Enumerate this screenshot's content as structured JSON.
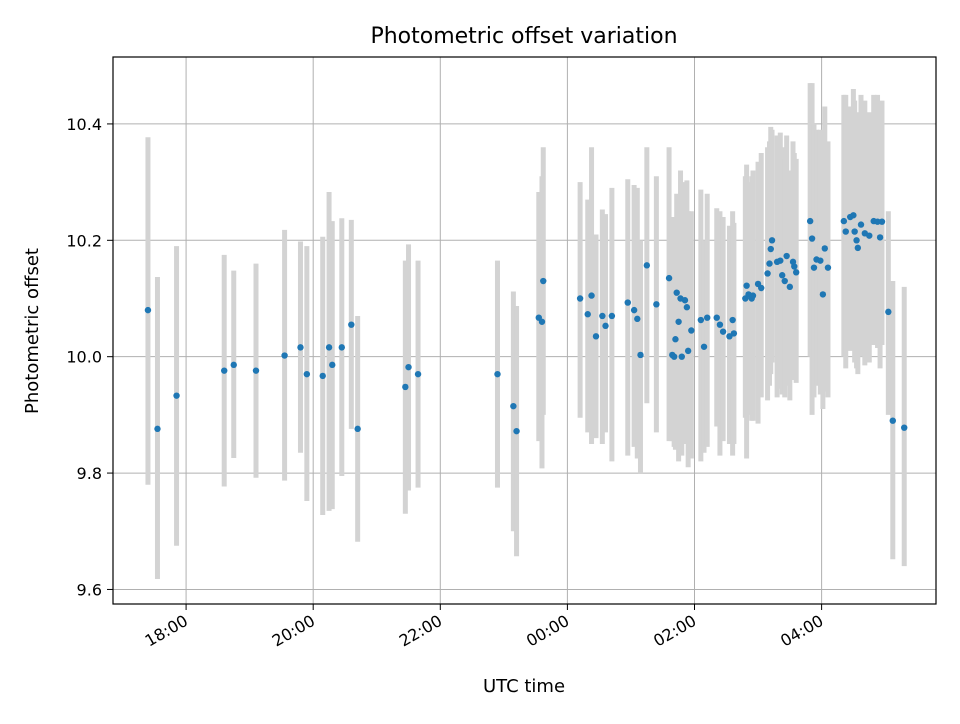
{
  "chart_data": {
    "type": "scatter",
    "title": "Photometric offset variation",
    "xlabel": "UTC time",
    "ylabel": "Photometric offset",
    "x_unit": "hours since 00:00 UTC",
    "xlim": [
      -7.15,
      5.8
    ],
    "ylim": [
      9.575,
      10.515
    ],
    "grid": true,
    "x_ticks": [
      {
        "value": -6,
        "label": "18:00"
      },
      {
        "value": -4,
        "label": "20:00"
      },
      {
        "value": -2,
        "label": "22:00"
      },
      {
        "value": 0,
        "label": "00:00"
      },
      {
        "value": 2,
        "label": "02:00"
      },
      {
        "value": 4,
        "label": "04:00"
      }
    ],
    "y_ticks": [
      {
        "value": 9.6,
        "label": "9.6"
      },
      {
        "value": 9.8,
        "label": "9.8"
      },
      {
        "value": 10.0,
        "label": "10.0"
      },
      {
        "value": 10.2,
        "label": "10.2"
      },
      {
        "value": 10.4,
        "label": "10.4"
      }
    ],
    "marker_color": "#1f77b4",
    "errorbar_color": "#d3d3d3",
    "series": [
      {
        "name": "offset",
        "points": [
          [
            -6.6,
            10.08,
            9.78,
            10.377
          ],
          [
            -6.45,
            9.876,
            9.618,
            10.137
          ],
          [
            -6.15,
            9.933,
            9.675,
            10.19
          ],
          [
            -5.4,
            9.976,
            9.777,
            10.175
          ],
          [
            -5.25,
            9.986,
            9.826,
            10.148
          ],
          [
            -4.9,
            9.976,
            9.792,
            10.16
          ],
          [
            -4.45,
            10.002,
            9.787,
            10.218
          ],
          [
            -4.2,
            10.016,
            9.835,
            10.198
          ],
          [
            -4.1,
            9.97,
            9.752,
            10.19
          ],
          [
            -3.85,
            9.967,
            9.728,
            10.206
          ],
          [
            -3.75,
            10.016,
            9.735,
            10.283
          ],
          [
            -3.7,
            9.986,
            9.738,
            10.233
          ],
          [
            -3.55,
            10.016,
            9.795,
            10.238
          ],
          [
            -3.4,
            10.055,
            9.876,
            10.235
          ],
          [
            -3.3,
            9.876,
            9.682,
            10.07
          ],
          [
            -2.55,
            9.948,
            9.73,
            10.165
          ],
          [
            -2.5,
            9.982,
            9.77,
            10.193
          ],
          [
            -2.35,
            9.97,
            9.775,
            10.165
          ],
          [
            -1.1,
            9.97,
            9.775,
            10.165
          ],
          [
            -0.85,
            9.915,
            9.7,
            10.112
          ],
          [
            -0.8,
            9.872,
            9.657,
            10.087
          ],
          [
            -0.45,
            10.067,
            9.855,
            10.283
          ],
          [
            -0.4,
            10.06,
            9.808,
            10.31
          ],
          [
            -0.38,
            10.13,
            9.9,
            10.36
          ],
          [
            0.2,
            10.1,
            9.895,
            10.3
          ],
          [
            0.32,
            10.073,
            9.87,
            10.27
          ],
          [
            0.38,
            10.105,
            9.85,
            10.36
          ],
          [
            0.45,
            10.035,
            9.86,
            10.21
          ],
          [
            0.55,
            10.07,
            9.85,
            10.253
          ],
          [
            0.6,
            10.053,
            9.87,
            10.245
          ],
          [
            0.7,
            10.07,
            9.82,
            10.29
          ],
          [
            0.95,
            10.093,
            9.83,
            10.305
          ],
          [
            1.05,
            10.08,
            9.845,
            10.295
          ],
          [
            1.1,
            10.065,
            9.825,
            10.29
          ],
          [
            1.15,
            10.003,
            9.8,
            10.2
          ],
          [
            1.25,
            10.157,
            9.92,
            10.36
          ],
          [
            1.4,
            10.09,
            9.87,
            10.31
          ],
          [
            1.6,
            10.135,
            9.855,
            10.36
          ],
          [
            1.65,
            10.003,
            9.855,
            10.24
          ],
          [
            1.68,
            10.0,
            9.845,
            10.19
          ],
          [
            1.7,
            10.03,
            9.84,
            10.24
          ],
          [
            1.72,
            10.11,
            9.885,
            10.28
          ],
          [
            1.75,
            10.06,
            9.82,
            10.27
          ],
          [
            1.78,
            10.1,
            9.87,
            10.32
          ],
          [
            1.8,
            10.0,
            9.83,
            10.18
          ],
          [
            1.85,
            10.097,
            9.85,
            10.3
          ],
          [
            1.88,
            10.085,
            9.875,
            10.303
          ],
          [
            1.9,
            10.01,
            9.81,
            10.25
          ],
          [
            1.95,
            10.045,
            9.825,
            10.25
          ],
          [
            2.1,
            10.063,
            9.82,
            10.287
          ],
          [
            2.15,
            10.017,
            9.835,
            10.2
          ],
          [
            2.2,
            10.067,
            9.845,
            10.28
          ],
          [
            2.35,
            10.067,
            9.88,
            10.255
          ],
          [
            2.4,
            10.055,
            9.83,
            10.25
          ],
          [
            2.45,
            10.043,
            9.855,
            10.24
          ],
          [
            2.55,
            10.035,
            9.85,
            10.225
          ],
          [
            2.6,
            10.063,
            9.83,
            10.25
          ],
          [
            2.62,
            10.04,
            9.85,
            10.23
          ],
          [
            2.8,
            10.1,
            9.895,
            10.31
          ],
          [
            2.82,
            10.122,
            9.825,
            10.33
          ],
          [
            2.85,
            10.107,
            9.9,
            10.3
          ],
          [
            2.9,
            10.1,
            9.89,
            10.31
          ],
          [
            2.92,
            10.105,
            9.89,
            10.32
          ],
          [
            3.0,
            10.125,
            9.885,
            10.335
          ],
          [
            3.05,
            10.118,
            9.93,
            10.35
          ],
          [
            3.15,
            10.143,
            9.925,
            10.36
          ],
          [
            3.18,
            10.16,
            9.95,
            10.37
          ],
          [
            3.2,
            10.185,
            9.97,
            10.395
          ],
          [
            3.22,
            10.2,
            9.99,
            10.39
          ],
          [
            3.3,
            10.163,
            9.93,
            10.38
          ],
          [
            3.35,
            10.165,
            9.945,
            10.385
          ],
          [
            3.38,
            10.14,
            9.935,
            10.36
          ],
          [
            3.42,
            10.13,
            9.93,
            10.34
          ],
          [
            3.45,
            10.173,
            9.95,
            10.38
          ],
          [
            3.5,
            10.12,
            9.925,
            10.32
          ],
          [
            3.55,
            10.163,
            9.96,
            10.37
          ],
          [
            3.57,
            10.155,
            9.96,
            10.35
          ],
          [
            3.6,
            10.145,
            9.955,
            10.34
          ],
          [
            3.82,
            10.233,
            10.0,
            10.47
          ],
          [
            3.85,
            10.203,
            9.9,
            10.47
          ],
          [
            3.88,
            10.153,
            9.93,
            10.4
          ],
          [
            3.92,
            10.167,
            9.95,
            10.39
          ],
          [
            3.98,
            10.165,
            9.935,
            10.39
          ],
          [
            4.02,
            10.107,
            9.91,
            10.3
          ],
          [
            4.05,
            10.186,
            9.94,
            10.43
          ],
          [
            4.1,
            10.153,
            9.93,
            10.37
          ],
          [
            4.35,
            10.233,
            10.0,
            10.45
          ],
          [
            4.38,
            10.215,
            9.98,
            10.45
          ],
          [
            4.45,
            10.24,
            10.01,
            10.43
          ],
          [
            4.5,
            10.243,
            10.03,
            10.46
          ],
          [
            4.52,
            10.215,
            9.99,
            10.44
          ],
          [
            4.55,
            10.2,
            9.98,
            10.42
          ],
          [
            4.57,
            10.187,
            9.97,
            10.41
          ],
          [
            4.62,
            10.227,
            10.0,
            10.45
          ],
          [
            4.68,
            10.212,
            9.985,
            10.44
          ],
          [
            4.75,
            10.208,
            9.99,
            10.42
          ],
          [
            4.82,
            10.233,
            10.02,
            10.45
          ],
          [
            4.88,
            10.232,
            10.015,
            10.45
          ],
          [
            4.92,
            10.205,
            9.98,
            10.43
          ],
          [
            4.95,
            10.232,
            10.02,
            10.44
          ],
          [
            5.05,
            10.077,
            9.9,
            10.25
          ],
          [
            5.12,
            9.89,
            9.652,
            10.13
          ],
          [
            5.3,
            9.878,
            9.64,
            10.12
          ]
        ]
      }
    ]
  }
}
